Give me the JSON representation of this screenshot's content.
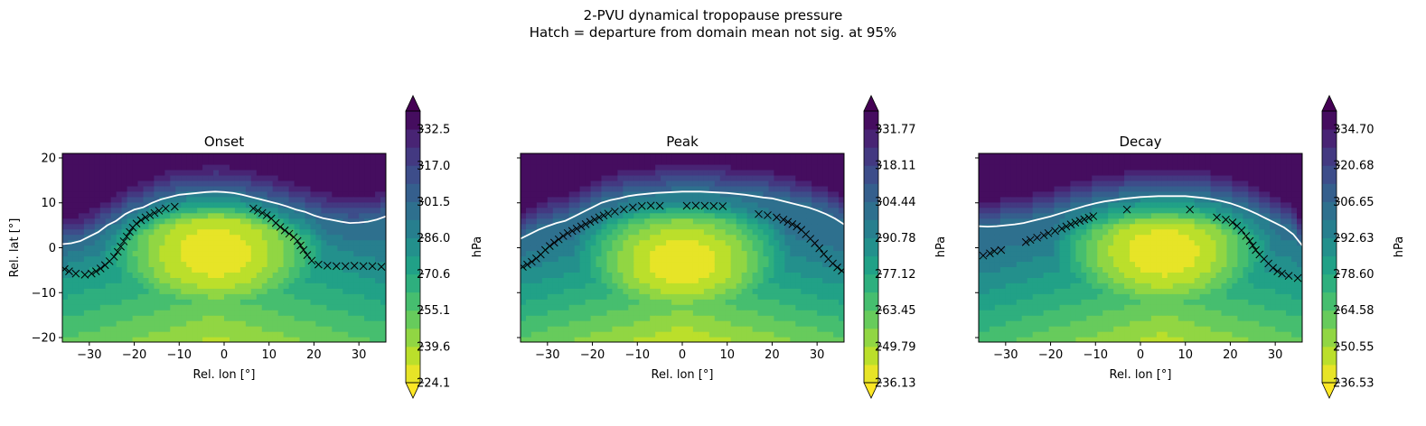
{
  "figure": {
    "title_line1": "2-PVU dynamical tropopause pressure",
    "title_line2": "Hatch = departure from domain mean not sig. at 95%"
  },
  "chart_data": [
    {
      "type": "heatmap",
      "title": "Onset",
      "xlabel": "Rel. lon [°]",
      "ylabel": "Rel. lat [°]",
      "xlim": [
        -36,
        36
      ],
      "ylim": [
        -21,
        21
      ],
      "xticks": [
        -30,
        -20,
        -10,
        0,
        10,
        20,
        30
      ],
      "yticks": [
        -20,
        -10,
        0,
        10,
        20
      ],
      "colormap": "viridis_r",
      "colorbar_label": "hPa",
      "colorbar_extend": "both",
      "colorbar_min": 224.1,
      "colorbar_max": 340.3,
      "colorbar_ticks": [
        "224.1",
        "239.6",
        "255.1",
        "270.6",
        "286.0",
        "301.5",
        "317.0",
        "332.5"
      ],
      "field": {
        "low_center": [
          -2,
          -1
        ],
        "low_value": 226,
        "north_value": 340,
        "south_value": 240
      },
      "contour_line": {
        "color": "#ffffff",
        "x": [
          -36,
          -34,
          -32,
          -30,
          -28,
          -26,
          -24,
          -22,
          -20,
          -18,
          -16,
          -14,
          -12,
          -10,
          -8,
          -6,
          -4,
          -2,
          0,
          2,
          4,
          6,
          8,
          10,
          12,
          14,
          16,
          18,
          20,
          22,
          24,
          26,
          28,
          30,
          32,
          34,
          36
        ],
        "y": [
          0.8,
          1,
          1.5,
          2.5,
          3.5,
          5,
          6,
          7.5,
          8.5,
          9,
          10,
          10.8,
          11.3,
          11.8,
          12,
          12.2,
          12.4,
          12.5,
          12.4,
          12.2,
          11.8,
          11.3,
          10.8,
          10.3,
          9.8,
          9.2,
          8.5,
          8,
          7.2,
          6.6,
          6.2,
          5.8,
          5.5,
          5.6,
          5.8,
          6.3,
          7
        ]
      },
      "hatch_line": {
        "x": [
          -36,
          -34,
          -32,
          -30,
          -28,
          -26,
          -24,
          -22,
          -20,
          -18,
          -16,
          -14,
          -12,
          -10,
          -8,
          -6,
          -4,
          -2,
          0,
          2,
          4,
          6,
          8,
          10,
          12,
          14,
          16,
          18,
          20,
          22,
          24,
          26,
          28,
          30,
          32,
          34,
          36
        ],
        "y": [
          -4.5,
          -5.5,
          -6,
          -6,
          -5,
          -3.5,
          -1.5,
          2,
          5,
          6.5,
          7.5,
          8.5,
          9,
          9.3,
          null,
          null,
          null,
          null,
          null,
          null,
          null,
          9,
          8,
          7,
          5,
          3.5,
          2,
          -1,
          -3.5,
          -4,
          -4,
          -4.2,
          -4,
          -4,
          -4.2,
          -4,
          -4.5
        ]
      }
    },
    {
      "type": "heatmap",
      "title": "Peak",
      "xlabel": "Rel. lon [°]",
      "ylabel": "",
      "xlim": [
        -36,
        36
      ],
      "ylim": [
        -21,
        21
      ],
      "xticks": [
        -30,
        -20,
        -10,
        0,
        10,
        20,
        30
      ],
      "yticks": [
        -20,
        -10,
        0,
        10,
        20
      ],
      "colormap": "viridis_r",
      "colorbar_label": "hPa",
      "colorbar_extend": "both",
      "colorbar_min": 236.13,
      "colorbar_max": 338.6,
      "colorbar_ticks": [
        "236.13",
        "249.79",
        "263.45",
        "277.12",
        "290.78",
        "304.44",
        "318.11",
        "331.77"
      ],
      "field": {
        "low_center": [
          0,
          -3
        ],
        "low_value": 238,
        "north_value": 338,
        "south_value": 246
      },
      "contour_line": {
        "color": "#ffffff",
        "x": [
          -36,
          -34,
          -32,
          -30,
          -28,
          -26,
          -24,
          -22,
          -20,
          -18,
          -16,
          -14,
          -12,
          -10,
          -8,
          -6,
          -4,
          -2,
          0,
          2,
          4,
          6,
          8,
          10,
          12,
          14,
          16,
          18,
          20,
          22,
          24,
          26,
          28,
          30,
          32,
          34,
          36
        ],
        "y": [
          2,
          3,
          4,
          4.8,
          5.5,
          6,
          7,
          8,
          9,
          10,
          10.6,
          11,
          11.5,
          11.8,
          12,
          12.2,
          12.3,
          12.4,
          12.5,
          12.5,
          12.5,
          12.4,
          12.3,
          12.2,
          12,
          11.8,
          11.5,
          11.2,
          11,
          10.5,
          10,
          9.5,
          9,
          8.3,
          7.5,
          6.5,
          5.2
        ]
      },
      "hatch_line": {
        "x": [
          -36,
          -34,
          -32,
          -30,
          -28,
          -26,
          -24,
          -22,
          -20,
          -18,
          -16,
          -14,
          -12,
          -10,
          -8,
          -6,
          -4,
          -2,
          0,
          2,
          4,
          6,
          8,
          10,
          12,
          14,
          16,
          18,
          20,
          22,
          24,
          26,
          28,
          30,
          32,
          34,
          36
        ],
        "y": [
          -4.5,
          -3.5,
          -2,
          0,
          1.5,
          3,
          4,
          5,
          6,
          7,
          7.8,
          8.3,
          8.8,
          9.2,
          9.4,
          9.4,
          9.3,
          null,
          9.3,
          9.4,
          9.4,
          9.3,
          9.3,
          9.2,
          null,
          null,
          7.5,
          7.5,
          7,
          6.5,
          5.5,
          4.5,
          2.5,
          0.5,
          -2,
          -4,
          -5.5
        ]
      }
    },
    {
      "type": "heatmap",
      "title": "Decay",
      "xlabel": "Rel. lon [°]",
      "ylabel": "",
      "xlim": [
        -36,
        36
      ],
      "ylim": [
        -21,
        21
      ],
      "xticks": [
        -30,
        -20,
        -10,
        0,
        10,
        20,
        30
      ],
      "yticks": [
        -20,
        -10,
        0,
        10,
        20
      ],
      "colormap": "viridis_r",
      "colorbar_label": "hPa",
      "colorbar_extend": "both",
      "colorbar_min": 236.53,
      "colorbar_max": 341.7,
      "colorbar_ticks": [
        "236.53",
        "250.55",
        "264.58",
        "278.60",
        "292.63",
        "306.65",
        "320.68",
        "334.70"
      ],
      "field": {
        "low_center": [
          5,
          -1
        ],
        "low_value": 238,
        "north_value": 341,
        "south_value": 250
      },
      "contour_line": {
        "color": "#ffffff",
        "x": [
          -36,
          -34,
          -32,
          -30,
          -28,
          -26,
          -24,
          -22,
          -20,
          -18,
          -16,
          -14,
          -12,
          -10,
          -8,
          -6,
          -4,
          -2,
          0,
          2,
          4,
          6,
          8,
          10,
          12,
          14,
          16,
          18,
          20,
          22,
          24,
          26,
          28,
          30,
          32,
          34,
          36
        ],
        "y": [
          4.8,
          4.7,
          4.8,
          5,
          5.2,
          5.5,
          6,
          6.5,
          7,
          7.6,
          8.2,
          8.8,
          9.4,
          9.9,
          10.3,
          10.6,
          10.9,
          11.1,
          11.3,
          11.4,
          11.5,
          11.5,
          11.5,
          11.5,
          11.3,
          11.1,
          10.8,
          10.4,
          9.9,
          9.2,
          8.4,
          7.5,
          6.5,
          5.5,
          4.5,
          3,
          0.5
        ]
      },
      "hatch_line": {
        "x": [
          -36,
          -34,
          -32,
          -30,
          -28,
          -26,
          -24,
          -22,
          -20,
          -18,
          -16,
          -14,
          -12,
          -10,
          -8,
          -6,
          -4,
          -2,
          0,
          2,
          4,
          6,
          8,
          10,
          12,
          14,
          16,
          18,
          20,
          22,
          24,
          26,
          28,
          30,
          32,
          34,
          36
        ],
        "y": [
          -2,
          -1.5,
          -0.5,
          -0.5,
          null,
          1,
          2,
          2.5,
          3.5,
          4,
          5,
          5.8,
          6.5,
          7.2,
          null,
          null,
          8.5,
          8.5,
          null,
          null,
          null,
          null,
          null,
          8.5,
          8.5,
          null,
          7,
          6.5,
          6,
          4.5,
          2,
          -1,
          -3,
          -5,
          -6,
          -6.5,
          -7
        ]
      }
    }
  ]
}
